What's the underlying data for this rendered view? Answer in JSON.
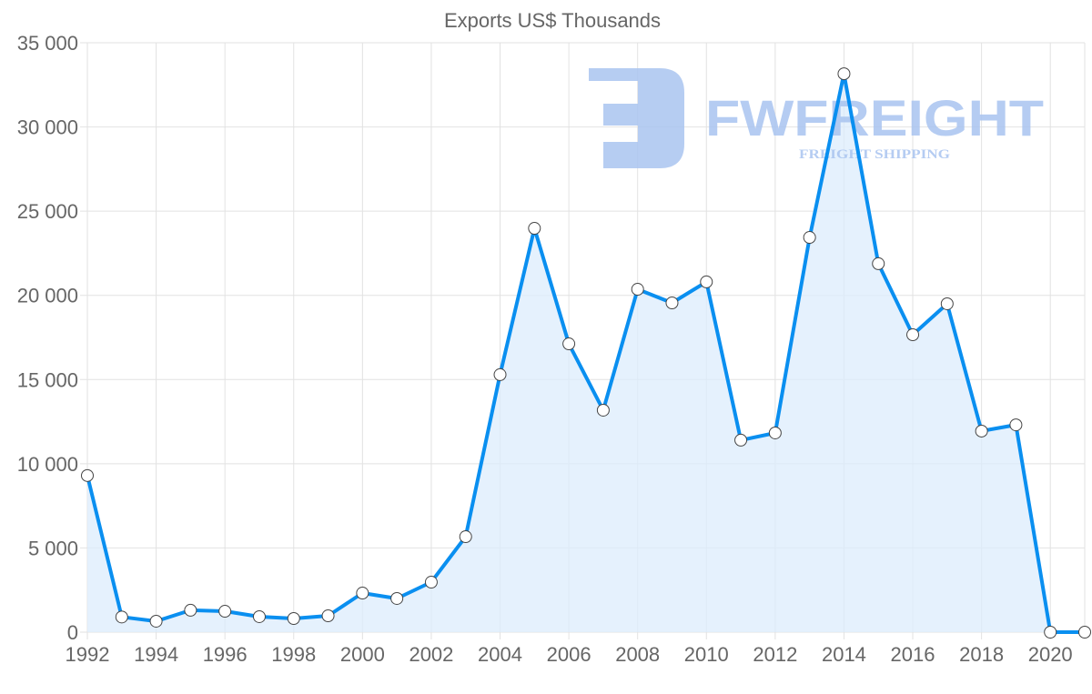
{
  "chart_data": {
    "type": "line",
    "title": "Exports US$ Thousands",
    "xlabel": "",
    "ylabel": "",
    "x": [
      1992,
      1993,
      1994,
      1995,
      1996,
      1997,
      1998,
      1999,
      2000,
      2001,
      2002,
      2003,
      2004,
      2005,
      2006,
      2007,
      2008,
      2009,
      2010,
      2011,
      2012,
      2013,
      2014,
      2015,
      2016,
      2017,
      2018,
      2019,
      2020,
      2021
    ],
    "series": [
      {
        "name": "Exports US$ Thousands",
        "values": [
          9300,
          900,
          650,
          1300,
          1240,
          920,
          810,
          970,
          2320,
          2000,
          2970,
          5670,
          15290,
          23980,
          17120,
          13180,
          20360,
          19550,
          20800,
          11400,
          11830,
          23440,
          33160,
          21880,
          17660,
          19500,
          11940,
          12310,
          0,
          0
        ]
      }
    ],
    "ylim": [
      0,
      35000
    ],
    "xlim": [
      1992,
      2021
    ],
    "yticks": [
      "0",
      "5 000",
      "10 000",
      "15 000",
      "20 000",
      "25 000",
      "30 000",
      "35 000"
    ],
    "xticks": [
      "1992",
      "1994",
      "1996",
      "1998",
      "2000",
      "2002",
      "2004",
      "2006",
      "2008",
      "2010",
      "2012",
      "2014",
      "2016",
      "2018",
      "2020"
    ],
    "grid": true,
    "fill": true,
    "colors": {
      "line": "#0a8ff0",
      "fill": "#dcecfc",
      "grid": "#e2e2e2",
      "watermark": "#a9c4f0"
    }
  },
  "watermark": {
    "brand": "FWFREIGHT",
    "tagline": "FREIGHT SHIPPING"
  }
}
